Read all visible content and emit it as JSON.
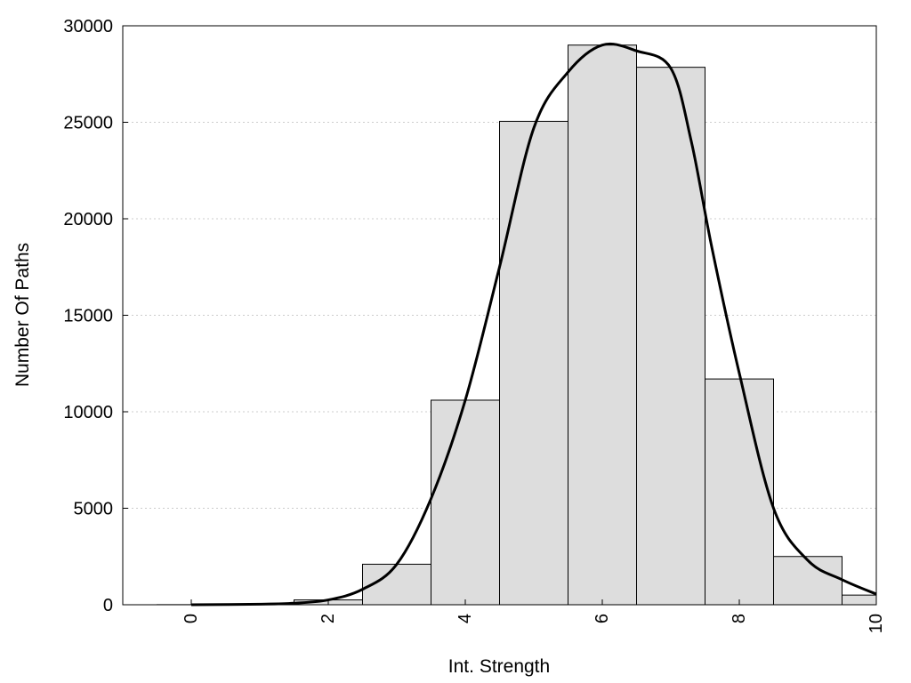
{
  "chart_data": {
    "type": "bar",
    "title": "",
    "xlabel": "Int. Strength",
    "ylabel": "Number Of Paths",
    "xlim": [
      -1,
      10
    ],
    "ylim": [
      0,
      30000
    ],
    "x_ticks": [
      0,
      2,
      4,
      6,
      8,
      10
    ],
    "y_ticks": [
      0,
      5000,
      10000,
      15000,
      20000,
      25000,
      30000
    ],
    "grid": "horizontal dotted",
    "bin_width": 1,
    "bar_fill": "#dddddd",
    "bar_stroke": "#000000",
    "line_color": "#000000",
    "bins": [
      {
        "center": 0,
        "value": 5
      },
      {
        "center": 1,
        "value": 30
      },
      {
        "center": 2,
        "value": 250
      },
      {
        "center": 3,
        "value": 2100
      },
      {
        "center": 4,
        "value": 10600
      },
      {
        "center": 5,
        "value": 25050
      },
      {
        "center": 6,
        "value": 29000
      },
      {
        "center": 7,
        "value": 27850
      },
      {
        "center": 8,
        "value": 11700
      },
      {
        "center": 9,
        "value": 2500
      },
      {
        "center": 10,
        "value": 500
      }
    ],
    "density_curve": [
      [
        0,
        0
      ],
      [
        1,
        30
      ],
      [
        1.5,
        80
      ],
      [
        2,
        250
      ],
      [
        2.5,
        800
      ],
      [
        3,
        2100
      ],
      [
        3.5,
        5500
      ],
      [
        4,
        10600
      ],
      [
        4.5,
        17500
      ],
      [
        5,
        24700
      ],
      [
        5.5,
        27600
      ],
      [
        6,
        29000
      ],
      [
        6.5,
        28700
      ],
      [
        7,
        27800
      ],
      [
        7.3,
        24000
      ],
      [
        7.6,
        18500
      ],
      [
        8,
        12000
      ],
      [
        8.5,
        5000
      ],
      [
        9,
        2300
      ],
      [
        9.5,
        1300
      ],
      [
        10,
        550
      ]
    ]
  }
}
